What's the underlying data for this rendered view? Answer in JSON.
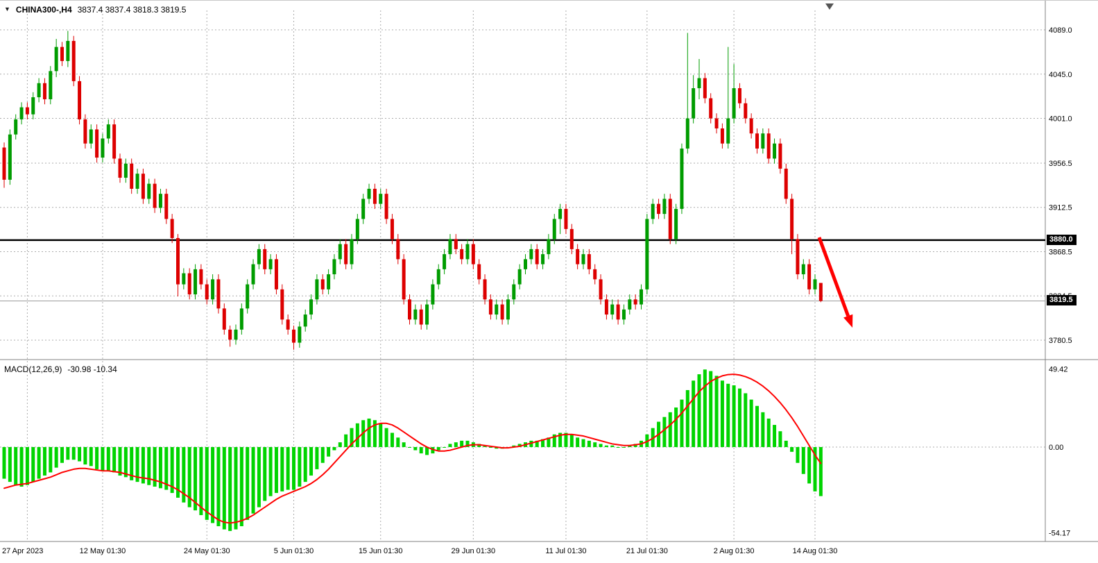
{
  "header": {
    "symbol": "CHINA300-,H4",
    "ohlc_text": "3837.4 3837.4 3818.3 3819.5"
  },
  "price_axis": {
    "gridline_labels": [
      "4089.0",
      "4045.0",
      "4001.0",
      "3956.5",
      "3912.5",
      "3868.5",
      "3824.5",
      "3780.5"
    ],
    "level_badge": "3880.0",
    "current_badge": "3819.5"
  },
  "time_axis": {
    "labels": [
      "27 Apr 2023",
      "12 May 01:30",
      "24 May 01:30",
      "5 Jun 01:30",
      "15 Jun 01:30",
      "29 Jun 01:30",
      "11 Jul 01:30",
      "21 Jul 01:30",
      "2 Aug 01:30",
      "14 Aug 01:30"
    ],
    "candle_indices": [
      4,
      17,
      35,
      50,
      65,
      81,
      97,
      111,
      126,
      140
    ]
  },
  "macd_panel": {
    "name": "MACD(12,26,9)",
    "values": "-30.98 -10.34",
    "axis_labels": [
      "49.42",
      "0.00",
      "-54.17"
    ]
  },
  "colors": {
    "bull": "#009C00",
    "bear": "#DD0000",
    "macd_histogram": "#00D400",
    "signal_line": "#FF0000",
    "grid": "#ABABAB",
    "border": "#808080",
    "level_line": "#000000",
    "current_line": "#9A9A9A",
    "arrow": "#FF0000",
    "badge_bg": "#000000",
    "badge_text": "#FFFFFF",
    "marker": "#555555"
  },
  "chart_data": [
    {
      "type": "candlestick",
      "title": "CHINA300-,H4",
      "timeframe": "H4",
      "grid": true,
      "ylim": [
        3761,
        4098
      ],
      "price_gridlines": [
        4089.0,
        4045.0,
        4001.0,
        3956.5,
        3912.5,
        3868.5,
        3824.5,
        3780.5
      ],
      "horizontal_level": 3880.0,
      "current_price": 3819.5,
      "last_ohlc": {
        "open": 3837.4,
        "high": 3837.4,
        "low": 3818.3,
        "close": 3819.5
      },
      "x_tick_labels": [
        "27 Apr 2023",
        "12 May 01:30",
        "24 May 01:30",
        "5 Jun 01:30",
        "15 Jun 01:30",
        "29 Jun 01:30",
        "11 Jul 01:30",
        "21 Jul 01:30",
        "2 Aug 01:30",
        "14 Aug 01:30"
      ],
      "open": [
        3972,
        3940,
        3985,
        4000,
        4012,
        4005,
        4022,
        4036,
        4020,
        4048,
        4072,
        4058,
        4078,
        4038,
        4000,
        3976,
        3990,
        3962,
        3981,
        3995,
        3961,
        3942,
        3956,
        3931,
        3946,
        3921,
        3936,
        3912,
        3926,
        3901,
        3882,
        3836,
        3847,
        3826,
        3851,
        3836,
        3821,
        3841,
        3812,
        3791,
        3781,
        3791,
        3812,
        3836,
        3856,
        3871,
        3851,
        3861,
        3831,
        3801,
        3791,
        3778,
        3794,
        3806,
        3821,
        3841,
        3831,
        3846,
        3861,
        3876,
        3856,
        3881,
        3901,
        3921,
        3931,
        3916,
        3926,
        3901,
        3881,
        3861,
        3821,
        3801,
        3811,
        3796,
        3816,
        3836,
        3851,
        3866,
        3881,
        3871,
        3861,
        3876,
        3856,
        3841,
        3821,
        3806,
        3816,
        3801,
        3821,
        3836,
        3851,
        3861,
        3871,
        3856,
        3866,
        3881,
        3901,
        3911,
        3891,
        3871,
        3856,
        3866,
        3851,
        3841,
        3821,
        3806,
        3816,
        3801,
        3811,
        3821,
        3816,
        3831,
        3901,
        3916,
        3906,
        3921,
        3881,
        3911,
        3971,
        4001,
        4031,
        4041,
        4021,
        4001,
        3991,
        3976,
        4001,
        4031,
        4016,
        4001,
        3986,
        3971,
        3986,
        3961,
        3976,
        3951,
        3921,
        3881,
        3846,
        3856,
        3831,
        3837.4
      ],
      "high": [
        3977,
        3990,
        4005,
        4017,
        4017,
        4027,
        4041,
        4041,
        4053,
        4080,
        4077,
        4088,
        4083,
        4043,
        4005,
        3995,
        3995,
        3986,
        4000,
        4000,
        3966,
        3961,
        3961,
        3951,
        3951,
        3941,
        3941,
        3931,
        3931,
        3906,
        3886,
        3852,
        3852,
        3856,
        3856,
        3841,
        3846,
        3846,
        3817,
        3795,
        3796,
        3817,
        3841,
        3861,
        3876,
        3876,
        3866,
        3866,
        3836,
        3806,
        3795,
        3799,
        3811,
        3826,
        3846,
        3846,
        3851,
        3866,
        3881,
        3881,
        3886,
        3906,
        3926,
        3936,
        3936,
        3931,
        3931,
        3906,
        3886,
        3866,
        3826,
        3816,
        3816,
        3821,
        3841,
        3856,
        3871,
        3886,
        3886,
        3876,
        3881,
        3881,
        3861,
        3846,
        3826,
        3821,
        3821,
        3826,
        3841,
        3856,
        3866,
        3876,
        3876,
        3871,
        3886,
        3906,
        3916,
        3916,
        3896,
        3876,
        3871,
        3871,
        3856,
        3846,
        3826,
        3821,
        3821,
        3816,
        3826,
        3826,
        3836,
        3906,
        3921,
        3921,
        3926,
        3926,
        3916,
        3976,
        4086,
        4044,
        4060,
        4046,
        4026,
        4006,
        3996,
        4072,
        4055,
        4036,
        4021,
        4006,
        3991,
        3991,
        3991,
        3981,
        3981,
        3956,
        3926,
        3886,
        3861,
        3861,
        3846,
        3837.4
      ],
      "low": [
        3932,
        3935,
        3980,
        3995,
        4000,
        4000,
        4017,
        4015,
        4015,
        4042,
        4053,
        4052,
        4033,
        3995,
        3971,
        3971,
        3957,
        3957,
        3976,
        3956,
        3937,
        3937,
        3926,
        3926,
        3916,
        3916,
        3907,
        3907,
        3896,
        3877,
        3824,
        3831,
        3821,
        3821,
        3831,
        3816,
        3816,
        3807,
        3786,
        3774,
        3776,
        3786,
        3807,
        3831,
        3851,
        3846,
        3846,
        3826,
        3796,
        3786,
        3771,
        3773,
        3789,
        3801,
        3816,
        3826,
        3826,
        3841,
        3856,
        3851,
        3851,
        3876,
        3896,
        3916,
        3911,
        3911,
        3896,
        3876,
        3856,
        3816,
        3796,
        3796,
        3791,
        3791,
        3811,
        3831,
        3846,
        3861,
        3866,
        3856,
        3856,
        3851,
        3836,
        3816,
        3801,
        3801,
        3796,
        3796,
        3816,
        3831,
        3846,
        3856,
        3851,
        3851,
        3861,
        3876,
        3886,
        3886,
        3866,
        3851,
        3851,
        3846,
        3836,
        3816,
        3801,
        3801,
        3796,
        3796,
        3806,
        3811,
        3811,
        3826,
        3896,
        3901,
        3901,
        3876,
        3876,
        3906,
        3966,
        3996,
        4020,
        4016,
        3996,
        3986,
        3971,
        3971,
        3996,
        4011,
        3996,
        3981,
        3966,
        3966,
        3956,
        3956,
        3946,
        3916,
        3866,
        3841,
        3841,
        3826,
        3826,
        3818.3
      ],
      "close": [
        3940,
        3985,
        4000,
        4012,
        4005,
        4022,
        4036,
        4020,
        4048,
        4072,
        4058,
        4078,
        4038,
        4000,
        3976,
        3990,
        3962,
        3981,
        3995,
        3961,
        3942,
        3956,
        3931,
        3946,
        3921,
        3936,
        3912,
        3926,
        3901,
        3882,
        3836,
        3847,
        3826,
        3851,
        3836,
        3821,
        3841,
        3812,
        3791,
        3781,
        3791,
        3812,
        3836,
        3856,
        3871,
        3851,
        3861,
        3831,
        3801,
        3791,
        3778,
        3794,
        3806,
        3821,
        3841,
        3831,
        3846,
        3861,
        3876,
        3856,
        3881,
        3901,
        3921,
        3931,
        3916,
        3926,
        3901,
        3881,
        3861,
        3821,
        3801,
        3811,
        3796,
        3816,
        3836,
        3851,
        3866,
        3881,
        3871,
        3861,
        3876,
        3856,
        3841,
        3821,
        3806,
        3816,
        3801,
        3821,
        3836,
        3851,
        3861,
        3871,
        3856,
        3866,
        3881,
        3901,
        3911,
        3891,
        3871,
        3856,
        3866,
        3851,
        3841,
        3821,
        3806,
        3816,
        3801,
        3811,
        3821,
        3816,
        3831,
        3901,
        3916,
        3906,
        3921,
        3881,
        3911,
        3971,
        4001,
        4031,
        4041,
        4021,
        4001,
        3991,
        3976,
        4001,
        4031,
        4016,
        4001,
        3986,
        3971,
        3986,
        3961,
        3976,
        3951,
        3921,
        3881,
        3846,
        3856,
        3831,
        3841,
        3819.5
      ]
    },
    {
      "type": "bar",
      "name": "MACD",
      "params": [
        12,
        26,
        9
      ],
      "last_values": {
        "macd": -30.98,
        "signal": -10.34
      },
      "ylim": [
        -54.17,
        49.42
      ],
      "axis_tick_values": [
        49.42,
        0,
        -54.17
      ],
      "histogram": [
        -20,
        -22,
        -24,
        -25,
        -24,
        -22,
        -20,
        -18,
        -16,
        -13,
        -10,
        -8,
        -8,
        -9,
        -11,
        -12,
        -14,
        -15,
        -15,
        -16,
        -18,
        -19,
        -21,
        -22,
        -23,
        -24,
        -25,
        -26,
        -27,
        -29,
        -32,
        -35,
        -38,
        -40,
        -43,
        -46,
        -48,
        -50,
        -52,
        -53,
        -52,
        -50,
        -46,
        -42,
        -38,
        -34,
        -31,
        -29,
        -28,
        -27,
        -27,
        -25,
        -22,
        -18,
        -14,
        -10,
        -6,
        -2,
        3,
        8,
        12,
        15,
        17,
        18,
        17,
        15,
        12,
        9,
        6,
        3,
        0,
        -2,
        -4,
        -5,
        -4,
        -2,
        0,
        2,
        3,
        4,
        4,
        3,
        2,
        1,
        0,
        -1,
        -1,
        0,
        1,
        2,
        3,
        4,
        4,
        5,
        6,
        8,
        9,
        9,
        8,
        6,
        5,
        4,
        3,
        2,
        1,
        1,
        0,
        0,
        1,
        2,
        4,
        8,
        12,
        16,
        19,
        22,
        25,
        30,
        36,
        42,
        46,
        49,
        48,
        45,
        42,
        40,
        39,
        37,
        34,
        30,
        26,
        22,
        18,
        14,
        10,
        4,
        -3,
        -10,
        -17,
        -23,
        -28,
        -30.98
      ],
      "signal": [
        -26,
        -25,
        -24,
        -23.5,
        -23,
        -22,
        -21,
        -20,
        -19,
        -17.5,
        -16,
        -15,
        -14,
        -13.5,
        -13.5,
        -14,
        -14.5,
        -15,
        -15,
        -15.5,
        -16,
        -17,
        -18,
        -19,
        -19.5,
        -20,
        -21,
        -22,
        -23.5,
        -25,
        -27,
        -29.5,
        -32,
        -35,
        -38,
        -41,
        -43.5,
        -46,
        -47.5,
        -48,
        -47.5,
        -46.5,
        -45,
        -43,
        -40.5,
        -38,
        -35.5,
        -33,
        -31,
        -29.5,
        -28,
        -26.5,
        -25,
        -23,
        -20.5,
        -17.5,
        -14,
        -10,
        -6,
        -2,
        2,
        5.5,
        9,
        12,
        14,
        15,
        15,
        14,
        12,
        9.5,
        7,
        4.5,
        2,
        0,
        -1.5,
        -2.5,
        -2.5,
        -2,
        -1,
        0,
        1,
        1.5,
        1.5,
        1,
        0.5,
        0,
        -0.5,
        -0.5,
        0,
        0.5,
        1.5,
        2.5,
        3.5,
        4.5,
        5.5,
        6.5,
        7.5,
        8,
        8,
        7.5,
        7,
        6,
        5,
        4,
        3,
        2,
        1.5,
        1,
        1,
        1.5,
        2,
        3.5,
        5.5,
        8,
        11,
        14,
        17.5,
        21.5,
        26,
        30.5,
        35,
        38.5,
        41.5,
        43.5,
        45,
        45.8,
        46,
        45.5,
        44.5,
        43,
        41,
        38.5,
        35.5,
        32,
        28,
        23.5,
        18.5,
        13,
        7,
        1,
        -5,
        -10.34
      ]
    }
  ]
}
